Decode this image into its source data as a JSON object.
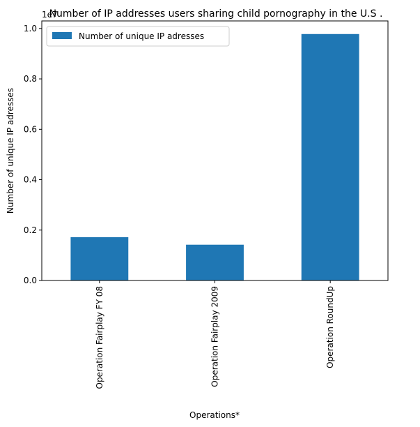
{
  "chart_data": {
    "type": "bar",
    "title": "Number of IP addresses users sharing child pornography in the U.S .",
    "xlabel": "Operations*",
    "ylabel": "Number of unique IP adresses",
    "y_offset_label": "1e7",
    "categories": [
      "Operation Fairplay FY 08",
      "Operation Fairplay 2009",
      "Operation RoundUp"
    ],
    "series": [
      {
        "name": "Number of unique IP adresses",
        "values": [
          1720000,
          1420000,
          9780000
        ]
      }
    ],
    "ylim": [
      0,
      10300000
    ],
    "yticks": [
      0,
      2000000,
      4000000,
      6000000,
      8000000,
      10000000
    ],
    "ytick_labels": [
      "0.0",
      "0.2",
      "0.4",
      "0.6",
      "0.8",
      "1.0"
    ],
    "bar_color": "#1f77b4",
    "grid": false,
    "legend_position": "top-left"
  }
}
